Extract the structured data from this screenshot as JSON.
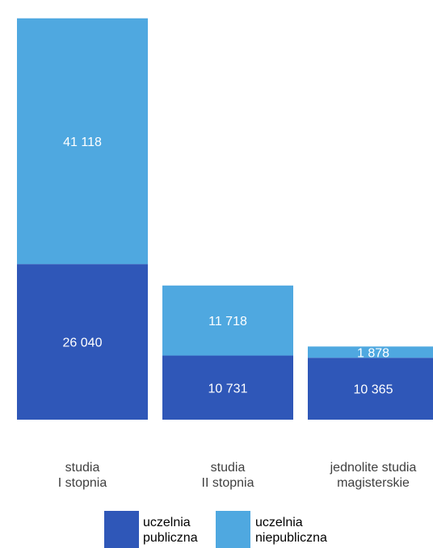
{
  "chart_data": {
    "type": "bar",
    "stacked": true,
    "categories": [
      [
        "studia",
        "I stopnia"
      ],
      [
        "studia",
        "II stopnia"
      ],
      [
        "jednolite studia",
        "magisterskie"
      ]
    ],
    "series": [
      {
        "name": [
          "uczelnia",
          "publiczna"
        ],
        "color": "#2f57b8",
        "values": [
          26040,
          10731,
          10365
        ],
        "labels": [
          "26 040",
          "10 731",
          "10 365"
        ]
      },
      {
        "name": [
          "uczelnia",
          "niepubliczna"
        ],
        "color": "#4fa8e0",
        "values": [
          41118,
          11718,
          1878
        ],
        "labels": [
          "41 118",
          "11 718",
          "1 878"
        ]
      }
    ],
    "legend_position": "bottom",
    "grid": false
  }
}
